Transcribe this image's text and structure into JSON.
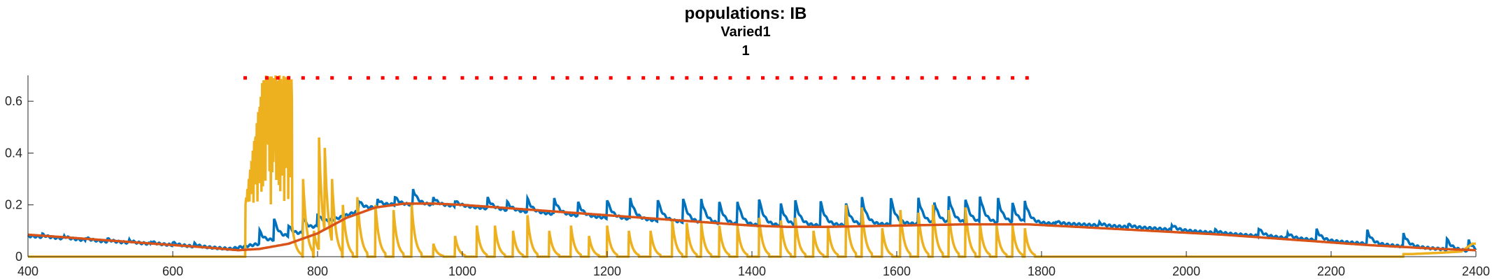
{
  "chart_data": {
    "type": "line",
    "title": "populations: IB",
    "subtitle1": "Varied1",
    "subtitle2": "1",
    "xlabel": "",
    "ylabel": "",
    "xlim": [
      400,
      2400
    ],
    "ylim": [
      0,
      0.7
    ],
    "xticks": [
      400,
      600,
      800,
      1000,
      1200,
      1400,
      1600,
      1800,
      2000,
      2200,
      2400
    ],
    "yticks": [
      0,
      0.2,
      0.4,
      0.6
    ],
    "ytick_labels": [
      "0",
      "0.2",
      "0.4",
      "0.6"
    ],
    "grid": false,
    "series": [
      {
        "name": "blue",
        "color": "#0072BD",
        "baseline": [
          [
            400,
            0.08
          ],
          [
            500,
            0.06
          ],
          [
            600,
            0.045
          ],
          [
            680,
            0.03
          ],
          [
            720,
            0.05
          ],
          [
            780,
            0.09
          ],
          [
            820,
            0.14
          ],
          [
            860,
            0.18
          ],
          [
            900,
            0.2
          ],
          [
            950,
            0.2
          ],
          [
            1000,
            0.195
          ],
          [
            1100,
            0.17
          ],
          [
            1200,
            0.15
          ],
          [
            1300,
            0.135
          ],
          [
            1400,
            0.12
          ],
          [
            1500,
            0.12
          ],
          [
            1600,
            0.125
          ],
          [
            1700,
            0.13
          ],
          [
            1780,
            0.13
          ],
          [
            1850,
            0.125
          ],
          [
            1950,
            0.11
          ],
          [
            2050,
            0.09
          ],
          [
            2150,
            0.07
          ],
          [
            2250,
            0.05
          ],
          [
            2350,
            0.03
          ],
          [
            2400,
            0.02
          ]
        ],
        "spike_times": [
          420,
          450,
          480,
          510,
          540,
          570,
          600,
          630,
          720,
          740,
          760,
          780,
          800,
          857,
          883,
          907,
          932,
          960,
          990,
          1035,
          1062,
          1090,
          1127,
          1160,
          1200,
          1232,
          1270,
          1305,
          1330,
          1355,
          1380,
          1410,
          1440,
          1460,
          1495,
          1530,
          1552,
          1592,
          1630,
          1652,
          1672,
          1695,
          1715,
          1740,
          1760,
          1777,
          1820,
          1880,
          1920,
          1980,
          2040,
          2100,
          2140,
          2180,
          2250,
          2300,
          2360,
          2390
        ],
        "spike_heights": [
          0.01,
          0.01,
          0.01,
          0.01,
          0.01,
          0.01,
          0.01,
          0.01,
          0.05,
          0.08,
          0.04,
          0.06,
          0.05,
          0.04,
          0.03,
          0.03,
          0.06,
          0.03,
          0.02,
          0.04,
          0.03,
          0.05,
          0.06,
          0.05,
          0.07,
          0.08,
          0.08,
          0.09,
          0.09,
          0.08,
          0.09,
          0.1,
          0.08,
          0.09,
          0.09,
          0.08,
          0.1,
          0.1,
          0.1,
          0.08,
          0.1,
          0.09,
          0.1,
          0.09,
          0.07,
          0.08,
          0.01,
          0.01,
          0.01,
          0.02,
          0.01,
          0.03,
          0.02,
          0.04,
          0.05,
          0.05,
          0.04,
          0.04
        ]
      },
      {
        "name": "orange",
        "color": "#D95319",
        "points": [
          [
            400,
            0.085
          ],
          [
            450,
            0.075
          ],
          [
            500,
            0.065
          ],
          [
            550,
            0.055
          ],
          [
            600,
            0.045
          ],
          [
            650,
            0.035
          ],
          [
            690,
            0.025
          ],
          [
            720,
            0.03
          ],
          [
            760,
            0.05
          ],
          [
            800,
            0.09
          ],
          [
            840,
            0.15
          ],
          [
            880,
            0.19
          ],
          [
            920,
            0.205
          ],
          [
            960,
            0.205
          ],
          [
            1000,
            0.2
          ],
          [
            1100,
            0.18
          ],
          [
            1200,
            0.16
          ],
          [
            1300,
            0.14
          ],
          [
            1400,
            0.12
          ],
          [
            1450,
            0.115
          ],
          [
            1500,
            0.115
          ],
          [
            1600,
            0.12
          ],
          [
            1700,
            0.125
          ],
          [
            1780,
            0.125
          ],
          [
            1850,
            0.115
          ],
          [
            1950,
            0.1
          ],
          [
            2050,
            0.085
          ],
          [
            2150,
            0.065
          ],
          [
            2250,
            0.045
          ],
          [
            2350,
            0.03
          ],
          [
            2400,
            0.025
          ]
        ]
      },
      {
        "name": "yellow",
        "color": "#EDB120",
        "bursts": [
          [
            710,
            0.35
          ],
          [
            720,
            0.58
          ],
          [
            730,
            0.7
          ],
          [
            740,
            0.7
          ],
          [
            750,
            0.7
          ],
          [
            765,
            0.12
          ],
          [
            780,
            0.3
          ],
          [
            795,
            0.1
          ],
          [
            802,
            0.46
          ],
          [
            810,
            0.42
          ],
          [
            820,
            0.3
          ],
          [
            835,
            0.2
          ],
          [
            855,
            0.23
          ],
          [
            880,
            0.2
          ],
          [
            905,
            0.18
          ],
          [
            930,
            0.2
          ],
          [
            960,
            0.05
          ],
          [
            990,
            0.08
          ],
          [
            1020,
            0.12
          ],
          [
            1045,
            0.12
          ],
          [
            1070,
            0.1
          ],
          [
            1090,
            0.16
          ],
          [
            1120,
            0.1
          ],
          [
            1150,
            0.12
          ],
          [
            1175,
            0.08
          ],
          [
            1200,
            0.12
          ],
          [
            1230,
            0.1
          ],
          [
            1260,
            0.1
          ],
          [
            1290,
            0.14
          ],
          [
            1310,
            0.13
          ],
          [
            1330,
            0.13
          ],
          [
            1355,
            0.12
          ],
          [
            1380,
            0.12
          ],
          [
            1410,
            0.15
          ],
          [
            1440,
            0.14
          ],
          [
            1460,
            0.15
          ],
          [
            1485,
            0.1
          ],
          [
            1505,
            0.12
          ],
          [
            1530,
            0.2
          ],
          [
            1552,
            0.19
          ],
          [
            1580,
            0.11
          ],
          [
            1605,
            0.18
          ],
          [
            1630,
            0.17
          ],
          [
            1650,
            0.2
          ],
          [
            1672,
            0.18
          ],
          [
            1695,
            0.19
          ],
          [
            1715,
            0.13
          ],
          [
            1738,
            0.12
          ],
          [
            1760,
            0.12
          ],
          [
            1777,
            0.11
          ]
        ],
        "baseline": 0.0,
        "tail": [
          [
            2310,
            0.01
          ],
          [
            2350,
            0.015
          ],
          [
            2380,
            0.02
          ],
          [
            2395,
            0.05
          ]
        ]
      }
    ],
    "markers": {
      "color": "#FF0000",
      "y": 0.69,
      "x": [
        700,
        730,
        745,
        760,
        780,
        800,
        820,
        845,
        870,
        890,
        910,
        935,
        955,
        975,
        1000,
        1020,
        1040,
        1060,
        1080,
        1100,
        1125,
        1145,
        1165,
        1185,
        1205,
        1230,
        1250,
        1270,
        1290,
        1310,
        1330,
        1350,
        1370,
        1395,
        1415,
        1435,
        1455,
        1475,
        1495,
        1515,
        1540,
        1555,
        1575,
        1595,
        1615,
        1635,
        1655,
        1680,
        1700,
        1720,
        1740,
        1760,
        1780
      ]
    }
  }
}
